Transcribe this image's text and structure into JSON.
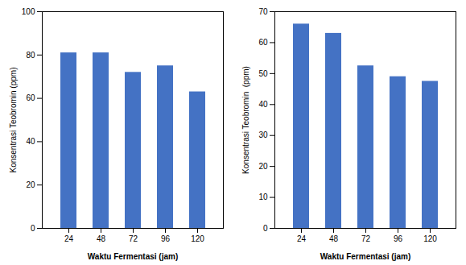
{
  "chart_data": [
    {
      "type": "bar",
      "categories": [
        "24",
        "48",
        "72",
        "96",
        "120"
      ],
      "values": [
        81,
        81,
        72,
        75,
        63
      ],
      "color": "#4472C4",
      "xlabel": "Waktu Fermentasi (jam)",
      "ylabel": "Konsentrasi Teobromin (ppm)",
      "ylim": [
        0,
        100
      ],
      "yticks": [
        0,
        20,
        40,
        60,
        80,
        100
      ],
      "grid": false
    },
    {
      "type": "bar",
      "categories": [
        "24",
        "48",
        "72",
        "96",
        "120"
      ],
      "values": [
        66,
        63,
        52.5,
        49,
        47.5
      ],
      "color": "#4472C4",
      "xlabel": "Waktu Fermentasi (jam)",
      "ylabel": "Konsentrasi Teobromin  (ppm)",
      "ylim": [
        0,
        70
      ],
      "yticks": [
        0,
        10,
        20,
        30,
        40,
        50,
        60,
        70
      ],
      "grid": false
    }
  ]
}
